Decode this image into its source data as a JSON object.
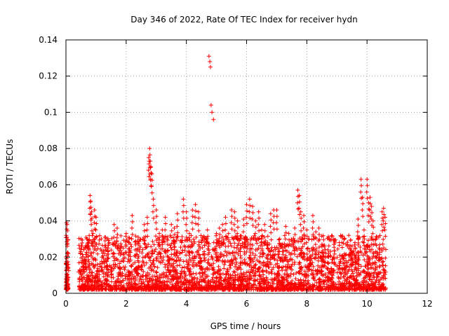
{
  "chart_data": {
    "type": "scatter",
    "title": "Day 346 of 2022, Rate Of TEC Index for receiver hydn",
    "xlabel": "GPS time / hours",
    "ylabel": "ROTI / TECUs",
    "xlim": [
      0,
      12
    ],
    "ylim": [
      0,
      0.14
    ],
    "grid": true,
    "x_ticks": [
      "0",
      "2",
      "4",
      "6",
      "8",
      "10",
      "12"
    ],
    "y_ticks": [
      "0",
      "0.02",
      "0.04",
      "0.06",
      "0.08",
      "0.1",
      "0.12",
      "0.14"
    ],
    "marker": "+",
    "marker_color": "#ff0000",
    "series": [
      {
        "name": "ROTI",
        "x": [
          0.0,
          0.02,
          0.04,
          0.06,
          0.08,
          0.02,
          0.05,
          0.45,
          0.5,
          0.55,
          0.6,
          0.65,
          0.7,
          0.75,
          0.8,
          0.82,
          0.85,
          0.9,
          0.95,
          1.0,
          1.05,
          1.1,
          1.2,
          1.3,
          1.4,
          1.5,
          1.6,
          1.7,
          1.8,
          1.9,
          2.0,
          2.1,
          2.2,
          2.3,
          2.4,
          2.5,
          2.6,
          2.7,
          2.75,
          2.78,
          2.8,
          2.82,
          2.85,
          2.9,
          3.0,
          3.1,
          3.2,
          3.3,
          3.4,
          3.5,
          3.6,
          3.7,
          3.8,
          3.9,
          4.0,
          4.1,
          4.2,
          4.3,
          4.4,
          4.5,
          4.6,
          4.7,
          4.75,
          4.78,
          4.8,
          4.82,
          4.85,
          4.9,
          5.0,
          5.1,
          5.2,
          5.3,
          5.4,
          5.5,
          5.6,
          5.7,
          5.8,
          5.9,
          6.0,
          6.1,
          6.2,
          6.3,
          6.4,
          6.5,
          6.6,
          6.7,
          6.8,
          6.9,
          7.0,
          7.1,
          7.2,
          7.3,
          7.4,
          7.5,
          7.6,
          7.7,
          7.75,
          7.8,
          7.9,
          8.0,
          8.1,
          8.2,
          8.3,
          8.4,
          8.5,
          8.6,
          8.7,
          8.8,
          8.9,
          9.0,
          9.1,
          9.2,
          9.3,
          9.4,
          9.5,
          9.6,
          9.7,
          9.8,
          9.85,
          9.9,
          10.0,
          10.05,
          10.1,
          10.15,
          10.2,
          10.3,
          10.4,
          10.5,
          10.55,
          10.6
        ],
        "y": [
          0.016,
          0.039,
          0.038,
          0.005,
          0.016,
          0.013,
          0.007,
          0.008,
          0.03,
          0.018,
          0.012,
          0.025,
          0.01,
          0.028,
          0.054,
          0.051,
          0.045,
          0.033,
          0.046,
          0.042,
          0.016,
          0.012,
          0.02,
          0.029,
          0.03,
          0.012,
          0.038,
          0.036,
          0.014,
          0.025,
          0.033,
          0.028,
          0.043,
          0.024,
          0.031,
          0.015,
          0.038,
          0.042,
          0.075,
          0.08,
          0.073,
          0.07,
          0.066,
          0.052,
          0.046,
          0.033,
          0.035,
          0.042,
          0.02,
          0.038,
          0.036,
          0.044,
          0.029,
          0.052,
          0.045,
          0.033,
          0.046,
          0.049,
          0.045,
          0.018,
          0.03,
          0.035,
          0.131,
          0.128,
          0.125,
          0.104,
          0.1,
          0.096,
          0.033,
          0.036,
          0.038,
          0.042,
          0.033,
          0.046,
          0.045,
          0.04,
          0.03,
          0.041,
          0.049,
          0.052,
          0.048,
          0.04,
          0.045,
          0.035,
          0.038,
          0.028,
          0.044,
          0.046,
          0.046,
          0.03,
          0.025,
          0.037,
          0.033,
          0.022,
          0.036,
          0.057,
          0.054,
          0.045,
          0.043,
          0.035,
          0.02,
          0.043,
          0.034,
          0.036,
          0.026,
          0.015,
          0.024,
          0.012,
          0.027,
          0.015,
          0.021,
          0.02,
          0.018,
          0.025,
          0.026,
          0.028,
          0.041,
          0.063,
          0.053,
          0.035,
          0.063,
          0.05,
          0.053,
          0.048,
          0.04,
          0.03,
          0.025,
          0.045,
          0.047,
          0.042
        ]
      }
    ]
  }
}
